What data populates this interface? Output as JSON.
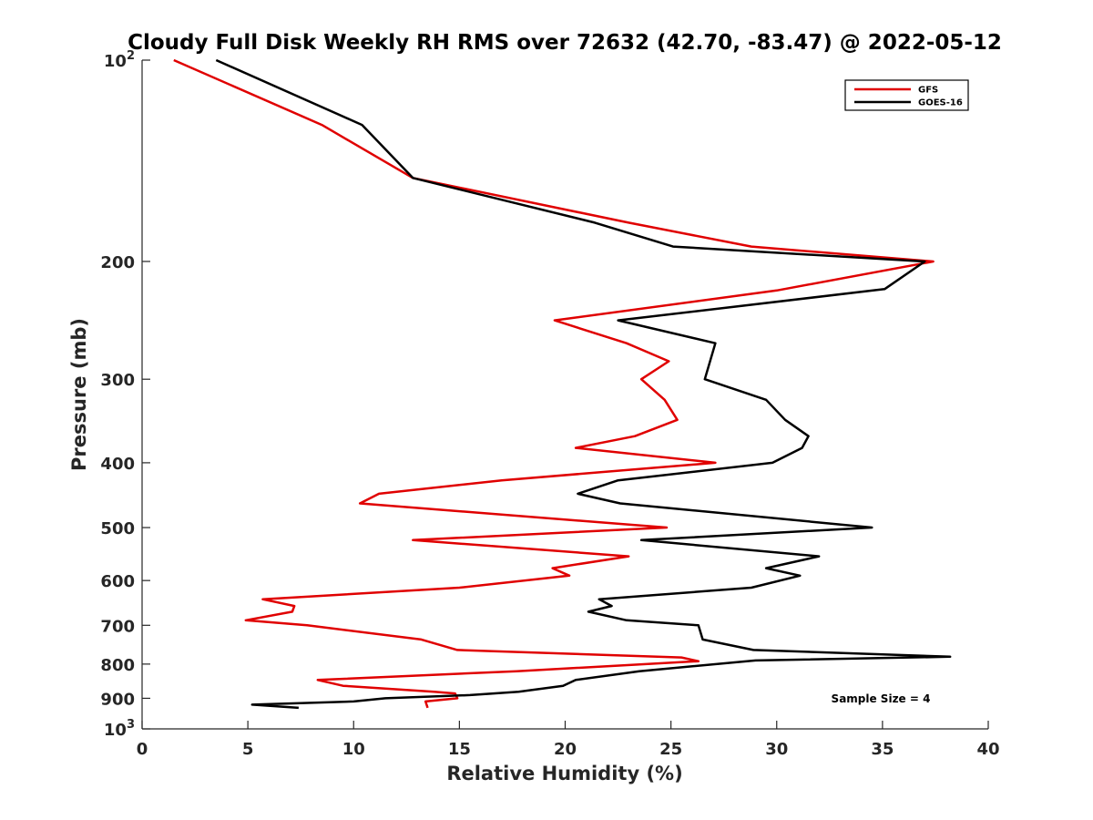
{
  "chart_data": {
    "type": "line",
    "title": "Cloudy Full Disk Weekly RH RMS over 72632 (42.70, -83.47) @ 2022-05-12",
    "xlabel": "Relative Humidity (%)",
    "ylabel": "Pressure (mb)",
    "xlim": [
      0,
      40
    ],
    "ylim": [
      100,
      1000
    ],
    "yscale": "log",
    "y_reversed": true,
    "x_ticks": [
      0,
      5,
      10,
      15,
      20,
      25,
      30,
      35,
      40
    ],
    "x_tick_labels": [
      "0",
      "5",
      "10",
      "15",
      "20",
      "25",
      "30",
      "35",
      "40"
    ],
    "y_ticks": [
      100,
      200,
      300,
      400,
      500,
      600,
      700,
      800,
      900,
      1000
    ],
    "y_tick_labels": [
      {
        "base": "10",
        "sup": "2"
      },
      {
        "base": "200",
        "sup": ""
      },
      {
        "base": "300",
        "sup": ""
      },
      {
        "base": "400",
        "sup": ""
      },
      {
        "base": "500",
        "sup": ""
      },
      {
        "base": "600",
        "sup": ""
      },
      {
        "base": "700",
        "sup": ""
      },
      {
        "base": "800",
        "sup": ""
      },
      {
        "base": "900",
        "sup": ""
      },
      {
        "base": "10",
        "sup": "3"
      }
    ],
    "grid": false,
    "legend_position": "top-right",
    "annotation": "Sample Size = 4",
    "series": [
      {
        "name": "GFS",
        "color": "#e00000",
        "points": [
          [
            1.5,
            100
          ],
          [
            8.5,
            125
          ],
          [
            12.8,
            150
          ],
          [
            23,
            175
          ],
          [
            28.8,
            190
          ],
          [
            37.4,
            200
          ],
          [
            30,
            221
          ],
          [
            19.5,
            245
          ],
          [
            22.9,
            265
          ],
          [
            24.9,
            282
          ],
          [
            23.6,
            300
          ],
          [
            24.7,
            322
          ],
          [
            25.3,
            345
          ],
          [
            23.3,
            365
          ],
          [
            20.5,
            380
          ],
          [
            27.1,
            400
          ],
          [
            17,
            425
          ],
          [
            11.2,
            445
          ],
          [
            10.3,
            460
          ],
          [
            24.8,
            500
          ],
          [
            12.8,
            522
          ],
          [
            23,
            552
          ],
          [
            19.4,
            575
          ],
          [
            20.2,
            590
          ],
          [
            15,
            615
          ],
          [
            5.7,
            640
          ],
          [
            7.2,
            655
          ],
          [
            7.1,
            668
          ],
          [
            4.9,
            688
          ],
          [
            7.8,
            700
          ],
          [
            13.2,
            735
          ],
          [
            14.9,
            762
          ],
          [
            25.5,
            782
          ],
          [
            26.3,
            792
          ],
          [
            17.7,
            820
          ],
          [
            8.3,
            845
          ],
          [
            9.5,
            862
          ],
          [
            13.8,
            880
          ],
          [
            14.8,
            885
          ],
          [
            14.9,
            900
          ],
          [
            13.4,
            910
          ],
          [
            13.5,
            930
          ]
        ]
      },
      {
        "name": "GOES-16",
        "color": "#000000",
        "points": [
          [
            3.5,
            100
          ],
          [
            10.4,
            125
          ],
          [
            12.8,
            150
          ],
          [
            21.4,
            175
          ],
          [
            25.1,
            190
          ],
          [
            37,
            200
          ],
          [
            35.1,
            220
          ],
          [
            22.5,
            245
          ],
          [
            27.1,
            265
          ],
          [
            26.6,
            300
          ],
          [
            29.5,
            322
          ],
          [
            30.4,
            345
          ],
          [
            31.5,
            365
          ],
          [
            31.2,
            380
          ],
          [
            29.8,
            400
          ],
          [
            22.5,
            425
          ],
          [
            20.6,
            445
          ],
          [
            22.6,
            460
          ],
          [
            34.5,
            500
          ],
          [
            23.6,
            522
          ],
          [
            32,
            552
          ],
          [
            29.5,
            575
          ],
          [
            31.1,
            590
          ],
          [
            28.8,
            615
          ],
          [
            21.6,
            640
          ],
          [
            22.2,
            655
          ],
          [
            21.1,
            668
          ],
          [
            22.9,
            688
          ],
          [
            26.3,
            700
          ],
          [
            26.5,
            735
          ],
          [
            28.9,
            762
          ],
          [
            38.2,
            780
          ],
          [
            29,
            790
          ],
          [
            23.5,
            820
          ],
          [
            20.5,
            845
          ],
          [
            19.9,
            862
          ],
          [
            17.8,
            880
          ],
          [
            15.5,
            890
          ],
          [
            11.5,
            900
          ],
          [
            10,
            910
          ],
          [
            5.2,
            920
          ],
          [
            7.4,
            930
          ]
        ]
      }
    ]
  }
}
